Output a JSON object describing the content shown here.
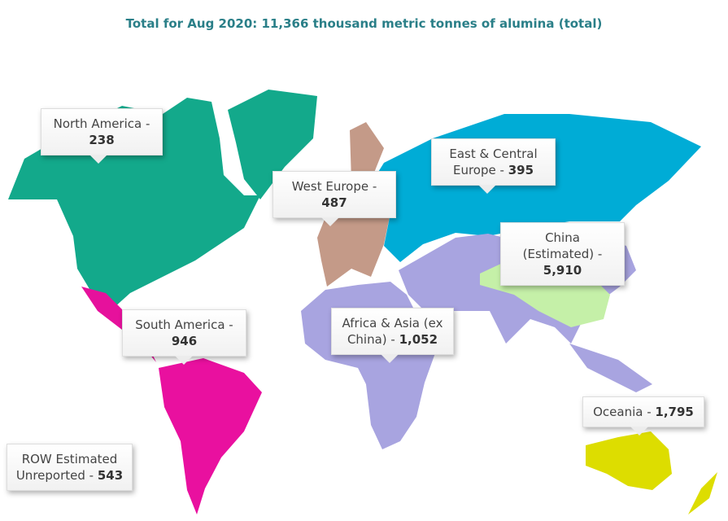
{
  "title": "Total for Aug 2020: 11,366 thousand metric tonnes of alumina  (total)",
  "regions": [
    {
      "name": "North America -",
      "value": "238"
    },
    {
      "name": "West Europe -",
      "value": "487"
    },
    {
      "name": "East & Central Europe -",
      "value": "395"
    },
    {
      "name": "China (Estimated) -",
      "value": "5,910"
    },
    {
      "name": "South America -",
      "value": "946"
    },
    {
      "name": "Africa & Asia (ex China) -",
      "value": "1,052"
    },
    {
      "name": "Oceania -",
      "value": "1,795"
    },
    {
      "name": "ROW Estimated Unreported -",
      "value": "543"
    }
  ]
}
